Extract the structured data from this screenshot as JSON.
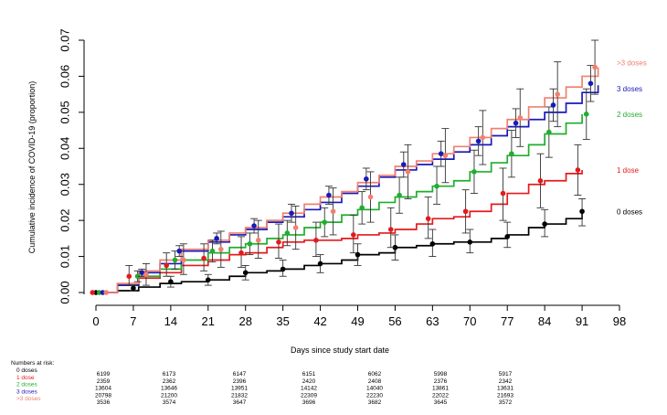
{
  "chart_data": {
    "type": "line",
    "xlabel": "Days since study start date",
    "ylabel": "Cumulative incidence of COVID-19 (proportion)",
    "xlim": [
      0,
      98
    ],
    "ylim": [
      0,
      0.07
    ],
    "x_ticks": [
      "0",
      "7",
      "14",
      "21",
      "28",
      "35",
      "42",
      "49",
      "56",
      "63",
      "70",
      "77",
      "84",
      "91",
      "98"
    ],
    "y_ticks": [
      "0.00",
      "0.01",
      "0.02",
      "0.03",
      "0.04",
      "0.05",
      "0.06",
      "0.07"
    ],
    "x_tick_values": [
      0,
      7,
      14,
      21,
      28,
      35,
      42,
      49,
      56,
      63,
      70,
      77,
      84,
      91,
      98
    ],
    "y_tick_values": [
      0,
      0.01,
      0.02,
      0.03,
      0.04,
      0.05,
      0.06,
      0.07
    ],
    "series": [
      {
        "name": "0 doses",
        "color": "#000000",
        "x": [
          0,
          4,
          8,
          12,
          16,
          21,
          25,
          28,
          32,
          35,
          39,
          42,
          46,
          49,
          53,
          56,
          60,
          63,
          67,
          70,
          74,
          77,
          81,
          84,
          88,
          91
        ],
        "y": [
          0,
          0.0005,
          0.0015,
          0.0025,
          0.003,
          0.0035,
          0.0045,
          0.0055,
          0.006,
          0.0065,
          0.0075,
          0.008,
          0.009,
          0.0105,
          0.011,
          0.0125,
          0.013,
          0.0135,
          0.014,
          0.014,
          0.015,
          0.016,
          0.018,
          0.019,
          0.0205,
          0.0225
        ],
        "markers": [
          {
            "x": 0,
            "y": 0,
            "lo": 0,
            "hi": 0
          },
          {
            "x": 7,
            "y": 0.0012,
            "lo": 0.0005,
            "hi": 0.002
          },
          {
            "x": 14,
            "y": 0.003,
            "lo": 0.0015,
            "hi": 0.0045
          },
          {
            "x": 21,
            "y": 0.0035,
            "lo": 0.002,
            "hi": 0.005
          },
          {
            "x": 28,
            "y": 0.0055,
            "lo": 0.0035,
            "hi": 0.0075
          },
          {
            "x": 35,
            "y": 0.0065,
            "lo": 0.0045,
            "hi": 0.009
          },
          {
            "x": 42,
            "y": 0.008,
            "lo": 0.0055,
            "hi": 0.0105
          },
          {
            "x": 49,
            "y": 0.0105,
            "lo": 0.0075,
            "hi": 0.0135
          },
          {
            "x": 56,
            "y": 0.0125,
            "lo": 0.009,
            "hi": 0.016
          },
          {
            "x": 63,
            "y": 0.0135,
            "lo": 0.01,
            "hi": 0.0175
          },
          {
            "x": 70,
            "y": 0.014,
            "lo": 0.011,
            "hi": 0.0175
          },
          {
            "x": 77,
            "y": 0.0155,
            "lo": 0.0125,
            "hi": 0.0195
          },
          {
            "x": 84,
            "y": 0.019,
            "lo": 0.0155,
            "hi": 0.023
          },
          {
            "x": 91,
            "y": 0.0225,
            "lo": 0.0185,
            "hi": 0.026
          }
        ]
      },
      {
        "name": "1 dose",
        "color": "#e41a1c",
        "x": [
          0,
          4,
          8,
          12,
          16,
          21,
          25,
          28,
          32,
          35,
          39,
          42,
          46,
          49,
          53,
          56,
          60,
          63,
          67,
          70,
          74,
          77,
          81,
          84,
          88,
          91
        ],
        "y": [
          0,
          0.002,
          0.004,
          0.0055,
          0.0075,
          0.009,
          0.0105,
          0.011,
          0.0125,
          0.014,
          0.0145,
          0.0145,
          0.015,
          0.016,
          0.0165,
          0.0175,
          0.019,
          0.0205,
          0.021,
          0.0225,
          0.0245,
          0.0275,
          0.03,
          0.031,
          0.033,
          0.034
        ],
        "markers": [
          {
            "x": 0,
            "y": 0,
            "lo": 0,
            "hi": 0
          },
          {
            "x": 7,
            "y": 0.0045,
            "lo": 0.002,
            "hi": 0.0075
          },
          {
            "x": 14,
            "y": 0.0075,
            "lo": 0.0045,
            "hi": 0.011
          },
          {
            "x": 21,
            "y": 0.0095,
            "lo": 0.006,
            "hi": 0.0135
          },
          {
            "x": 28,
            "y": 0.011,
            "lo": 0.007,
            "hi": 0.0155
          },
          {
            "x": 35,
            "y": 0.014,
            "lo": 0.0095,
            "hi": 0.019
          },
          {
            "x": 42,
            "y": 0.0145,
            "lo": 0.01,
            "hi": 0.0195
          },
          {
            "x": 49,
            "y": 0.016,
            "lo": 0.011,
            "hi": 0.0215
          },
          {
            "x": 56,
            "y": 0.0175,
            "lo": 0.0125,
            "hi": 0.0235
          },
          {
            "x": 63,
            "y": 0.0205,
            "lo": 0.015,
            "hi": 0.0265
          },
          {
            "x": 70,
            "y": 0.0225,
            "lo": 0.0165,
            "hi": 0.0285
          },
          {
            "x": 77,
            "y": 0.0275,
            "lo": 0.02,
            "hi": 0.0345
          },
          {
            "x": 84,
            "y": 0.031,
            "lo": 0.0235,
            "hi": 0.0385
          },
          {
            "x": 91,
            "y": 0.034,
            "lo": 0.027,
            "hi": 0.041
          }
        ]
      },
      {
        "name": "2 doses",
        "color": "#1fae2d",
        "x": [
          0,
          4,
          8,
          12,
          16,
          21,
          25,
          28,
          32,
          35,
          39,
          42,
          46,
          49,
          53,
          56,
          60,
          63,
          67,
          70,
          74,
          77,
          81,
          84,
          88,
          91
        ],
        "y": [
          0,
          0.002,
          0.0045,
          0.0065,
          0.009,
          0.011,
          0.0125,
          0.0135,
          0.015,
          0.016,
          0.018,
          0.0195,
          0.0215,
          0.023,
          0.025,
          0.0265,
          0.028,
          0.0295,
          0.031,
          0.0335,
          0.036,
          0.038,
          0.041,
          0.044,
          0.047,
          0.0495
        ],
        "markers": [
          {
            "x": 0,
            "y": 0,
            "lo": 0,
            "hi": 0
          },
          {
            "x": 7,
            "y": 0.0045,
            "lo": 0.003,
            "hi": 0.006
          },
          {
            "x": 14,
            "y": 0.009,
            "lo": 0.0065,
            "hi": 0.0115
          },
          {
            "x": 21,
            "y": 0.0115,
            "lo": 0.0085,
            "hi": 0.0145
          },
          {
            "x": 28,
            "y": 0.0135,
            "lo": 0.0105,
            "hi": 0.0165
          },
          {
            "x": 35,
            "y": 0.0165,
            "lo": 0.013,
            "hi": 0.02
          },
          {
            "x": 42,
            "y": 0.0195,
            "lo": 0.0155,
            "hi": 0.0235
          },
          {
            "x": 49,
            "y": 0.0235,
            "lo": 0.019,
            "hi": 0.028
          },
          {
            "x": 56,
            "y": 0.027,
            "lo": 0.022,
            "hi": 0.032
          },
          {
            "x": 63,
            "y": 0.0295,
            "lo": 0.0245,
            "hi": 0.035
          },
          {
            "x": 70,
            "y": 0.0335,
            "lo": 0.0275,
            "hi": 0.0395
          },
          {
            "x": 77,
            "y": 0.0385,
            "lo": 0.032,
            "hi": 0.045
          },
          {
            "x": 84,
            "y": 0.0445,
            "lo": 0.0375,
            "hi": 0.0515
          },
          {
            "x": 91,
            "y": 0.0495,
            "lo": 0.0425,
            "hi": 0.0565
          }
        ]
      },
      {
        "name": "3 doses",
        "color": "#1a1ab8",
        "x": [
          0,
          4,
          8,
          12,
          16,
          21,
          25,
          28,
          32,
          35,
          39,
          42,
          46,
          49,
          53,
          56,
          60,
          63,
          67,
          70,
          74,
          77,
          81,
          84,
          88,
          91,
          94
        ],
        "y": [
          0,
          0.002,
          0.0055,
          0.008,
          0.0115,
          0.014,
          0.016,
          0.0175,
          0.0195,
          0.021,
          0.023,
          0.025,
          0.0275,
          0.0295,
          0.032,
          0.034,
          0.0355,
          0.037,
          0.039,
          0.041,
          0.0435,
          0.046,
          0.048,
          0.05,
          0.0525,
          0.0555,
          0.0575
        ],
        "markers": [
          {
            "x": 0,
            "y": 0,
            "lo": 0,
            "hi": 0
          },
          {
            "x": 7,
            "y": 0.0055,
            "lo": 0.0045,
            "hi": 0.0065
          },
          {
            "x": 14,
            "y": 0.0115,
            "lo": 0.01,
            "hi": 0.013
          },
          {
            "x": 21,
            "y": 0.015,
            "lo": 0.0135,
            "hi": 0.0165
          },
          {
            "x": 28,
            "y": 0.0185,
            "lo": 0.0165,
            "hi": 0.0205
          },
          {
            "x": 35,
            "y": 0.022,
            "lo": 0.0195,
            "hi": 0.0245
          },
          {
            "x": 42,
            "y": 0.027,
            "lo": 0.0245,
            "hi": 0.0295
          },
          {
            "x": 49,
            "y": 0.0315,
            "lo": 0.0285,
            "hi": 0.0345
          },
          {
            "x": 56,
            "y": 0.0355,
            "lo": 0.032,
            "hi": 0.039
          },
          {
            "x": 63,
            "y": 0.0385,
            "lo": 0.035,
            "hi": 0.042
          },
          {
            "x": 70,
            "y": 0.042,
            "lo": 0.038,
            "hi": 0.046
          },
          {
            "x": 77,
            "y": 0.047,
            "lo": 0.043,
            "hi": 0.051
          },
          {
            "x": 84,
            "y": 0.052,
            "lo": 0.0475,
            "hi": 0.0565
          },
          {
            "x": 91,
            "y": 0.058,
            "lo": 0.053,
            "hi": 0.063
          }
        ]
      },
      {
        "name": ">3 doses",
        "color": "#f08070",
        "x": [
          0,
          4,
          8,
          12,
          16,
          21,
          25,
          28,
          32,
          35,
          39,
          42,
          46,
          49,
          53,
          56,
          60,
          63,
          67,
          70,
          74,
          77,
          81,
          84,
          88,
          91,
          94
        ],
        "y": [
          0,
          0.0025,
          0.006,
          0.009,
          0.012,
          0.0145,
          0.0165,
          0.018,
          0.02,
          0.022,
          0.0245,
          0.0265,
          0.028,
          0.0305,
          0.0325,
          0.035,
          0.0365,
          0.0385,
          0.0405,
          0.043,
          0.0455,
          0.048,
          0.0515,
          0.054,
          0.057,
          0.06,
          0.0625
        ],
        "markers": [
          {
            "x": 0,
            "y": 0,
            "lo": 0,
            "hi": 0
          },
          {
            "x": 7,
            "y": 0.005,
            "lo": 0.002,
            "hi": 0.008
          },
          {
            "x": 14,
            "y": 0.009,
            "lo": 0.005,
            "hi": 0.0135
          },
          {
            "x": 21,
            "y": 0.012,
            "lo": 0.007,
            "hi": 0.017
          },
          {
            "x": 28,
            "y": 0.0145,
            "lo": 0.0095,
            "hi": 0.02
          },
          {
            "x": 35,
            "y": 0.018,
            "lo": 0.012,
            "hi": 0.024
          },
          {
            "x": 42,
            "y": 0.0225,
            "lo": 0.016,
            "hi": 0.029
          },
          {
            "x": 49,
            "y": 0.0265,
            "lo": 0.0195,
            "hi": 0.0335
          },
          {
            "x": 56,
            "y": 0.0335,
            "lo": 0.026,
            "hi": 0.041
          },
          {
            "x": 63,
            "y": 0.038,
            "lo": 0.0305,
            "hi": 0.0455
          },
          {
            "x": 70,
            "y": 0.043,
            "lo": 0.0355,
            "hi": 0.0505
          },
          {
            "x": 77,
            "y": 0.0485,
            "lo": 0.0405,
            "hi": 0.0565
          },
          {
            "x": 84,
            "y": 0.055,
            "lo": 0.046,
            "hi": 0.064
          },
          {
            "x": 91,
            "y": 0.0625,
            "lo": 0.055,
            "hi": 0.07
          }
        ]
      }
    ]
  },
  "risk_table": {
    "title": "Numbers at risk:",
    "rows": [
      {
        "name": "0 doses",
        "color": "#000000",
        "values": [
          "6199",
          "6173",
          "6147",
          "6151",
          "6062",
          "5998",
          "5917"
        ]
      },
      {
        "name": "1 dose",
        "color": "#e41a1c",
        "values": [
          "2359",
          "2362",
          "2396",
          "2420",
          "2408",
          "2376",
          "2342"
        ]
      },
      {
        "name": "2 doses",
        "color": "#1fae2d",
        "values": [
          "13604",
          "13646",
          "13951",
          "14142",
          "14040",
          "13861",
          "13631"
        ]
      },
      {
        "name": "3 doses",
        "color": "#1a1ab8",
        "values": [
          "20798",
          "21200",
          "21832",
          "22309",
          "22230",
          "22022",
          "21693"
        ]
      },
      {
        "name": ">3 doses",
        "color": "#f08070",
        "values": [
          "3536",
          "3574",
          "3647",
          "3696",
          "3682",
          "3645",
          "3572"
        ]
      }
    ]
  }
}
